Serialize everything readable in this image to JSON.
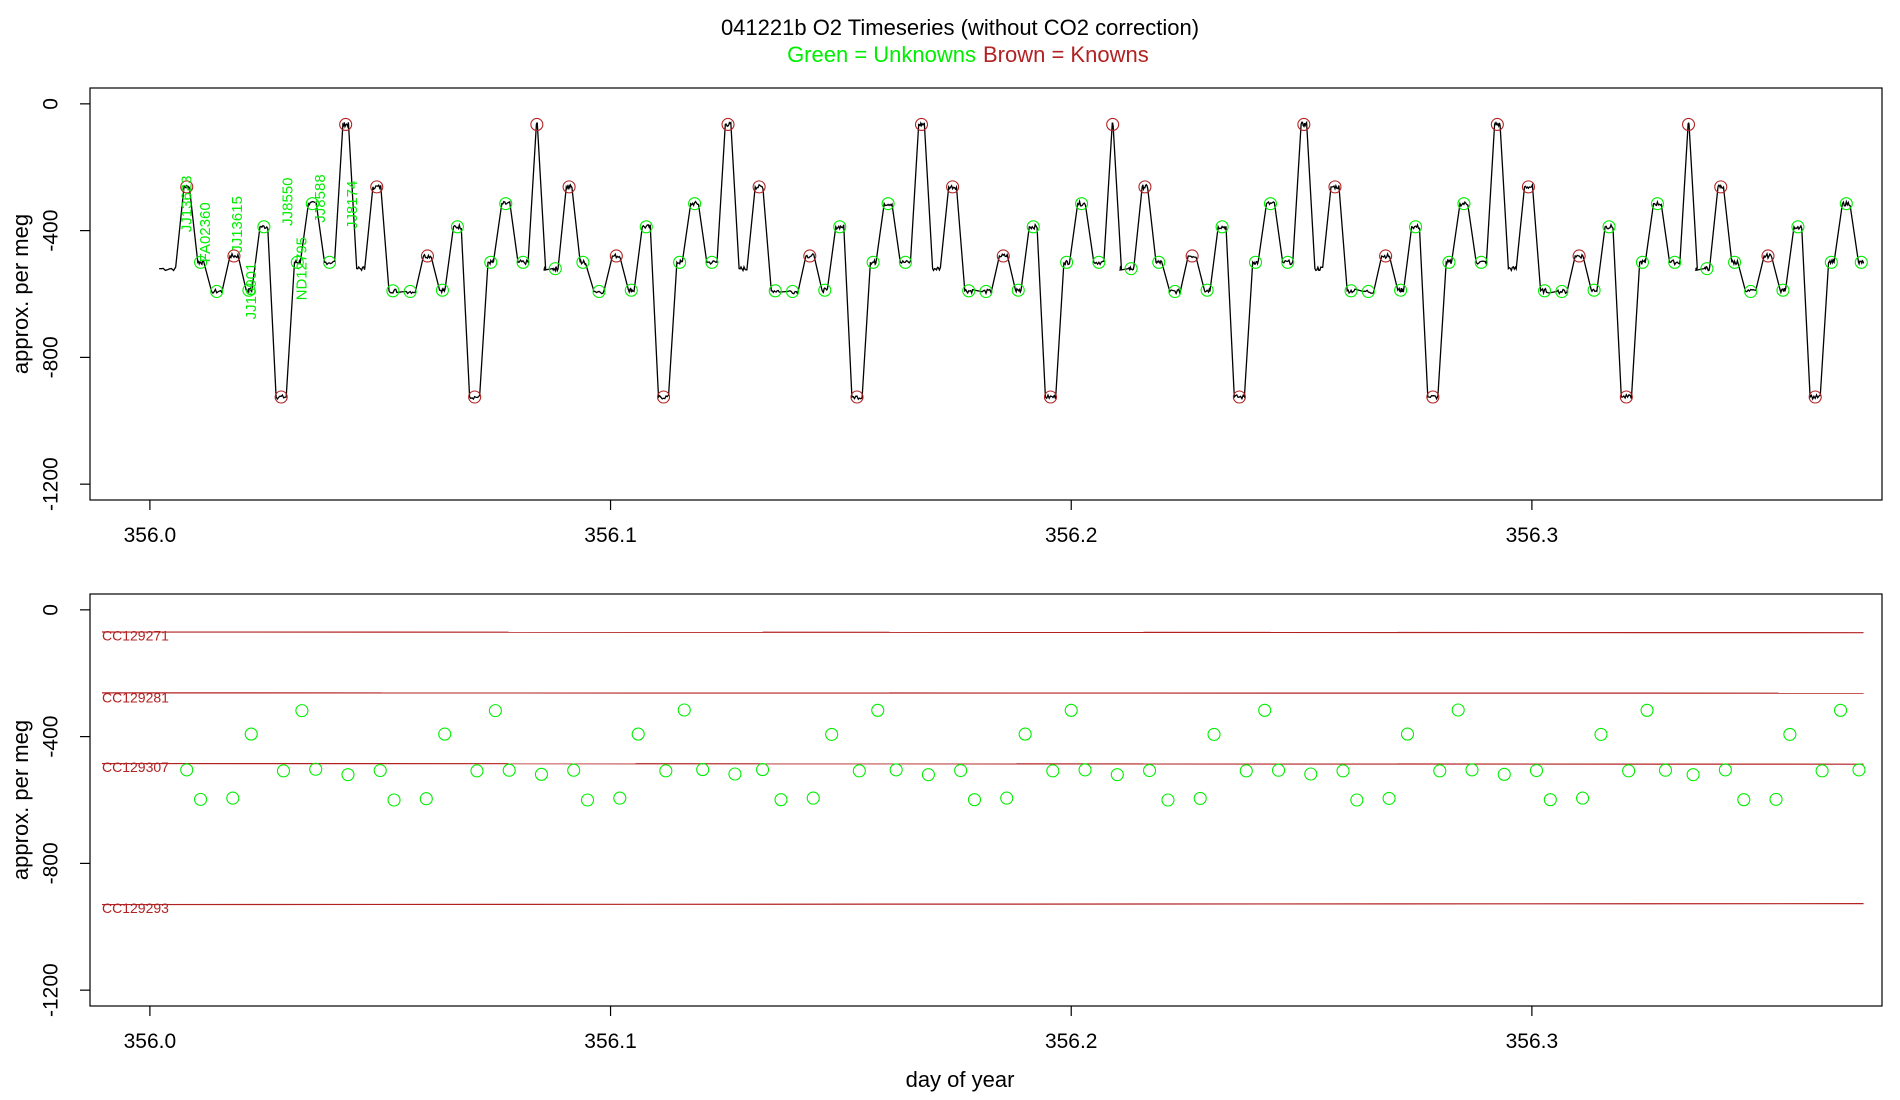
{
  "title": "041221b   O2 Timeseries (without CO2 correction)",
  "legend": {
    "unknowns": "Green = Unknowns",
    "knowns": "Brown = Knowns"
  },
  "colors": {
    "unknown": "#00ee00",
    "known": "#b22222",
    "trace": "#000000",
    "axis": "#000000"
  },
  "chart_data": [
    {
      "type": "line",
      "name": "top-panel",
      "xlabel": "",
      "ylabel": "approx. per meg",
      "xlim": [
        355.987,
        356.376
      ],
      "ylim": [
        -1250,
        50
      ],
      "xticks": [
        356.0,
        356.1,
        356.2,
        356.3
      ],
      "xtick_labels": [
        "356.0",
        "356.1",
        "356.2",
        "356.3"
      ],
      "yticks": [
        0,
        -400,
        -800,
        -1200
      ],
      "ytick_labels": [
        "0",
        "-400",
        "-800",
        "-1200"
      ],
      "cycle_period": 0.0417,
      "cycle_starts": [
        356.002,
        356.044,
        356.085,
        356.127,
        356.169,
        356.21,
        356.252,
        356.294,
        356.335
      ],
      "cycle_pattern": [
        {
          "dx": 0.0,
          "kind": "start",
          "y": -520
        },
        {
          "dx": 0.0045,
          "kind": "known",
          "y": -262
        },
        {
          "dx": 0.0075,
          "kind": "unknown",
          "y": -500
        },
        {
          "dx": 0.0105,
          "kind": "unknown",
          "y": -592
        },
        {
          "dx": 0.0145,
          "kind": "known",
          "y": -480
        },
        {
          "dx": 0.018,
          "kind": "unknown",
          "y": -588
        },
        {
          "dx": 0.021,
          "kind": "unknown",
          "y": -388
        },
        {
          "dx": 0.0245,
          "kind": "known",
          "y": -925
        },
        {
          "dx": 0.0285,
          "kind": "unknown",
          "y": -500
        },
        {
          "dx": 0.0315,
          "kind": "unknown",
          "y": -315
        },
        {
          "dx": 0.035,
          "kind": "unknown",
          "y": -500
        },
        {
          "dx": 0.039,
          "kind": "known",
          "y": -65
        },
        {
          "dx": 0.0425,
          "kind": "unknown",
          "y": -520
        },
        {
          "dx": 0.0455,
          "kind": "known",
          "y": -262
        },
        {
          "dx": 0.049,
          "kind": "unknown",
          "y": -590
        }
      ],
      "end_x": 356.372,
      "sample_labels": [
        {
          "text": "JJ13623",
          "x": 356.009,
          "y": -405
        },
        {
          "text": "FA02360",
          "x": 356.013,
          "y": -500
        },
        {
          "text": "JJ13615",
          "x": 356.02,
          "y": -470
        },
        {
          "text": "JJ16901",
          "x": 356.023,
          "y": -680
        },
        {
          "text": "JJ8550",
          "x": 356.031,
          "y": -385
        },
        {
          "text": "ND12795",
          "x": 356.034,
          "y": -620
        },
        {
          "text": "JJ8588",
          "x": 356.038,
          "y": -375
        },
        {
          "text": "JJ8174",
          "x": 356.045,
          "y": -395
        }
      ]
    },
    {
      "type": "scatter",
      "name": "bottom-panel",
      "xlabel": "day of year",
      "ylabel": "approx. per meg",
      "xlim": [
        355.987,
        356.376
      ],
      "ylim": [
        -1250,
        50
      ],
      "xticks": [
        356.0,
        356.1,
        356.2,
        356.3
      ],
      "xtick_labels": [
        "356.0",
        "356.1",
        "356.2",
        "356.3"
      ],
      "yticks": [
        0,
        -400,
        -800,
        -1200
      ],
      "ytick_labels": [
        "0",
        "-400",
        "-800",
        "-1200"
      ],
      "reference_lines": [
        {
          "label": "CC129271",
          "y_start": -70,
          "y_end": -72,
          "label_y": -85
        },
        {
          "label": "CC129281",
          "y_start": -262,
          "y_end": -263,
          "label_y": -280
        },
        {
          "label": "CC129307",
          "y_start": -485,
          "y_end": -487,
          "label_y": -500
        },
        {
          "label": "CC129293",
          "y_start": -930,
          "y_end": -927,
          "label_y": -945
        }
      ],
      "line_x": [
        355.987,
        356.372
      ],
      "unknowns": {
        "x": [
          356.008,
          356.011,
          356.018,
          356.022,
          356.029,
          356.033,
          356.036,
          356.043,
          356.05,
          356.053,
          356.06,
          356.064,
          356.071,
          356.075,
          356.078,
          356.085,
          356.092,
          356.095,
          356.102,
          356.106,
          356.112,
          356.116,
          356.12,
          356.127,
          356.133,
          356.137,
          356.144,
          356.148,
          356.154,
          356.158,
          356.162,
          356.169,
          356.176,
          356.179,
          356.186,
          356.19,
          356.196,
          356.2,
          356.203,
          356.21,
          356.217,
          356.221,
          356.228,
          356.231,
          356.238,
          356.242,
          356.245,
          356.252,
          356.259,
          356.262,
          356.269,
          356.273,
          356.28,
          356.284,
          356.287,
          356.294,
          356.301,
          356.304,
          356.311,
          356.315,
          356.321,
          356.325,
          356.329,
          356.335,
          356.342,
          356.346,
          356.353,
          356.356,
          356.363,
          356.367,
          356.371
        ],
        "y": [
          -505,
          -598,
          -594,
          -392,
          -508,
          -318,
          -503,
          -520,
          -507,
          -600,
          -596,
          -392,
          -508,
          -318,
          -506,
          -519,
          -506,
          -600,
          -594,
          -392,
          -508,
          -316,
          -504,
          -518,
          -504,
          -599,
          -594,
          -393,
          -508,
          -317,
          -505,
          -520,
          -507,
          -599,
          -594,
          -392,
          -508,
          -317,
          -505,
          -520,
          -507,
          -600,
          -595,
          -393,
          -508,
          -317,
          -506,
          -518,
          -508,
          -600,
          -595,
          -392,
          -508,
          -316,
          -505,
          -519,
          -507,
          -599,
          -594,
          -393,
          -508,
          -317,
          -506,
          -520,
          -505,
          -599,
          -598,
          -393,
          -508,
          -317,
          -505
        ]
      }
    }
  ]
}
